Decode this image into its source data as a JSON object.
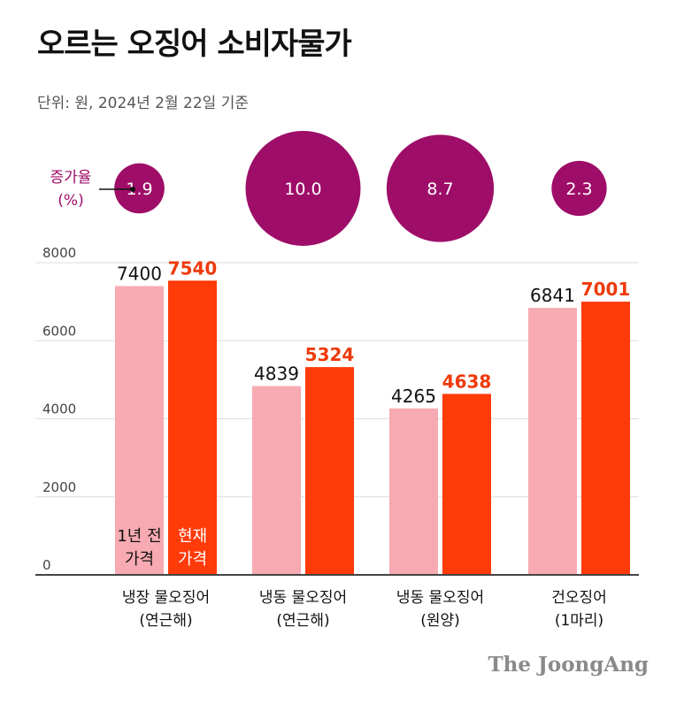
{
  "header": {
    "title": "오르는 오징어 소비자물가",
    "subtitle": "단위: 원, 2024년 2월 22일 기준"
  },
  "credit": "The JoongAng",
  "colors": {
    "previous": "#f7aab2",
    "current": "#ff3b0a",
    "current_label": "#ee3a0c",
    "bubble": "#9e0d68",
    "bubble_text": "#ffffff",
    "rate_label": "#9e0d68",
    "axis": "#444444",
    "grid": "#dddddd",
    "tick": "#444444"
  },
  "chart_data": {
    "type": "bar",
    "title": "오르는 오징어 소비자물가",
    "subtitle": "단위: 원, 2024년 2월 22일 기준",
    "categories": [
      [
        "냉장 물오징어",
        "(연근해)"
      ],
      [
        "냉동 물오징어",
        "(연근해)"
      ],
      [
        "냉동 물오징어",
        "(원양)"
      ],
      [
        "건오징어",
        "(1마리)"
      ]
    ],
    "series": [
      {
        "name": "1년 전 가격",
        "label_lines": [
          "1년 전",
          "가격"
        ],
        "values": [
          7400,
          4839,
          4265,
          6841
        ]
      },
      {
        "name": "현재 가격",
        "label_lines": [
          "현재",
          "가격"
        ],
        "values": [
          7540,
          5324,
          4638,
          7001
        ]
      }
    ],
    "ylim": [
      0,
      8000
    ],
    "yticks": [
      0,
      2000,
      4000,
      6000,
      8000
    ],
    "grid": true,
    "growth_rate": {
      "label_lines": [
        "증가율",
        "(%)"
      ],
      "values": [
        "1.9",
        "10.0",
        "8.7",
        "2.3"
      ]
    }
  }
}
